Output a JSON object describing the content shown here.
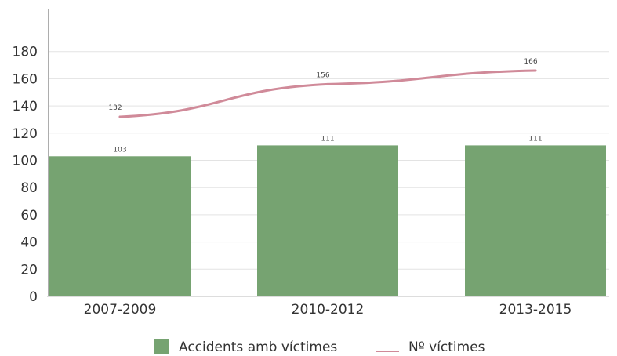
{
  "chart_data": {
    "type": "bar",
    "categories": [
      "2007-2009",
      "2010-2012",
      "2013-2015"
    ],
    "series": [
      {
        "name": "Accidents amb víctimes",
        "type": "bar",
        "values": [
          103,
          111,
          111
        ],
        "color": "#76a371"
      },
      {
        "name": "Nº víctimes",
        "type": "line",
        "values": [
          132,
          156,
          166
        ],
        "color": "#d08a99"
      }
    ],
    "ylim": [
      0,
      200
    ],
    "yticks": [
      0,
      20,
      40,
      60,
      80,
      100,
      120,
      140,
      160,
      180
    ],
    "grid": true,
    "legend_position": "bottom-center",
    "title": "",
    "xlabel": "",
    "ylabel": ""
  }
}
